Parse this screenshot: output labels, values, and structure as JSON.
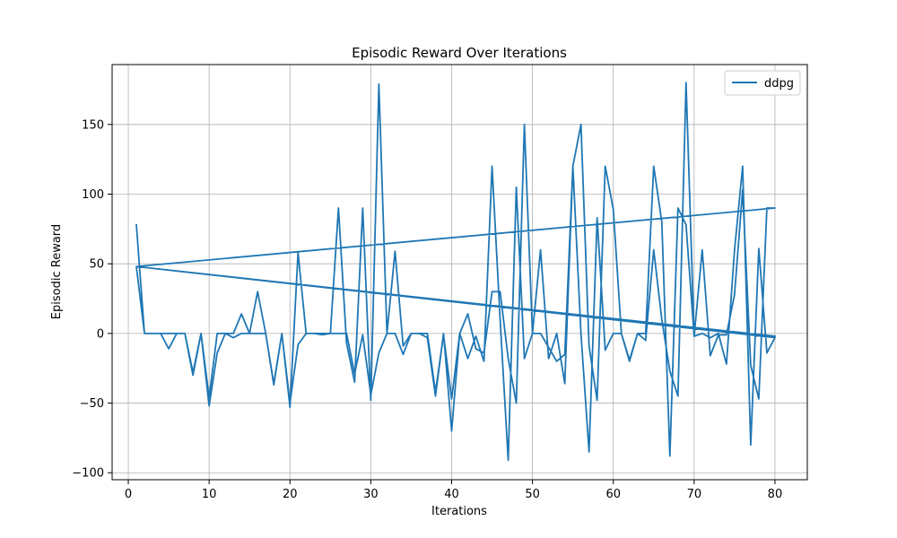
{
  "chart_data": {
    "type": "line",
    "title": "Episodic Reward Over Iterations",
    "xlabel": "Iterations",
    "ylabel": "Episodic Reward",
    "xlim": [
      -2,
      84
    ],
    "ylim": [
      -105,
      193
    ],
    "xticks": [
      0,
      10,
      20,
      30,
      40,
      50,
      60,
      70,
      80
    ],
    "yticks": [
      -100,
      -50,
      0,
      50,
      100,
      150
    ],
    "ytick_labels": [
      "−100",
      "−50",
      "0",
      "50",
      "100",
      "150"
    ],
    "grid": true,
    "legend_position": "top-right",
    "series": [
      {
        "name": "ddpg",
        "color": "#1f77b4",
        "points": [
          [
            1,
            78
          ],
          [
            2,
            0
          ],
          [
            3,
            0
          ],
          [
            4,
            0
          ],
          [
            5,
            -11
          ],
          [
            6,
            0
          ],
          [
            7,
            0
          ],
          [
            8,
            -30
          ],
          [
            9,
            0
          ],
          [
            10,
            -52
          ],
          [
            11,
            -14
          ],
          [
            12,
            0
          ],
          [
            13,
            -3
          ],
          [
            14,
            0
          ],
          [
            15,
            0
          ],
          [
            16,
            30
          ],
          [
            17,
            0
          ],
          [
            18,
            -36
          ],
          [
            19,
            0
          ],
          [
            20,
            -53
          ],
          [
            21,
            58
          ],
          [
            22,
            0
          ],
          [
            23,
            0
          ],
          [
            24,
            0
          ],
          [
            25,
            0
          ],
          [
            26,
            90
          ],
          [
            27,
            -7
          ],
          [
            28,
            -35
          ],
          [
            29,
            90
          ],
          [
            30,
            -48
          ],
          [
            31,
            179
          ],
          [
            32,
            0
          ],
          [
            33,
            59
          ],
          [
            34,
            -9
          ],
          [
            35,
            0
          ],
          [
            36,
            0
          ],
          [
            37,
            -3
          ],
          [
            38,
            -45
          ],
          [
            39,
            0
          ],
          [
            40,
            -70
          ],
          [
            41,
            0
          ],
          [
            42,
            -18
          ],
          [
            43,
            -2
          ],
          [
            44,
            -20
          ],
          [
            45,
            120
          ],
          [
            46,
            10
          ],
          [
            47,
            -91
          ],
          [
            48,
            105
          ],
          [
            49,
            -18
          ],
          [
            50,
            0
          ],
          [
            51,
            60
          ],
          [
            52,
            -18
          ],
          [
            53,
            0
          ],
          [
            54,
            -36
          ],
          [
            55,
            120
          ],
          [
            56,
            0
          ],
          [
            57,
            -85
          ],
          [
            58,
            83
          ],
          [
            59,
            -12
          ],
          [
            60,
            0
          ],
          [
            61,
            0
          ],
          [
            62,
            -20
          ],
          [
            63,
            0
          ],
          [
            64,
            0
          ],
          [
            65,
            120
          ],
          [
            66,
            80
          ],
          [
            67,
            -88
          ],
          [
            68,
            90
          ],
          [
            69,
            78
          ],
          [
            70,
            -2
          ],
          [
            71,
            0
          ],
          [
            72,
            -3
          ],
          [
            73,
            0
          ],
          [
            74,
            -22
          ],
          [
            75,
            60
          ],
          [
            76,
            120
          ],
          [
            77,
            -80
          ],
          [
            78,
            61
          ],
          [
            79,
            -14
          ],
          [
            80,
            -3
          ],
          [
            1,
            48
          ],
          [
            2,
            0
          ],
          [
            3,
            0
          ],
          [
            4,
            0
          ],
          [
            5,
            0
          ],
          [
            6,
            0
          ],
          [
            7,
            0
          ],
          [
            8,
            -28
          ],
          [
            9,
            0
          ],
          [
            10,
            -46
          ],
          [
            11,
            0
          ],
          [
            12,
            0
          ],
          [
            13,
            0
          ],
          [
            14,
            14
          ],
          [
            15,
            0
          ],
          [
            16,
            0
          ],
          [
            17,
            0
          ],
          [
            18,
            -37
          ],
          [
            19,
            0
          ],
          [
            20,
            -50
          ],
          [
            21,
            -8
          ],
          [
            22,
            0
          ],
          [
            23,
            0
          ],
          [
            24,
            -1
          ],
          [
            25,
            0
          ],
          [
            26,
            0
          ],
          [
            27,
            0
          ],
          [
            28,
            -29
          ],
          [
            29,
            -1
          ],
          [
            30,
            -44
          ],
          [
            31,
            -14
          ],
          [
            32,
            0
          ],
          [
            33,
            0
          ],
          [
            34,
            -15
          ],
          [
            35,
            0
          ],
          [
            36,
            0
          ],
          [
            37,
            0
          ],
          [
            38,
            -42
          ],
          [
            39,
            -1
          ],
          [
            40,
            -47
          ],
          [
            41,
            0
          ],
          [
            42,
            14
          ],
          [
            43,
            -11
          ],
          [
            44,
            -14
          ],
          [
            45,
            30
          ],
          [
            46,
            30
          ],
          [
            47,
            -18
          ],
          [
            48,
            -50
          ],
          [
            49,
            150
          ],
          [
            50,
            0
          ],
          [
            51,
            0
          ],
          [
            52,
            -10
          ],
          [
            53,
            -20
          ],
          [
            54,
            -15
          ],
          [
            55,
            120
          ],
          [
            56,
            150
          ],
          [
            57,
            -9
          ],
          [
            58,
            -48
          ],
          [
            59,
            120
          ],
          [
            60,
            89
          ],
          [
            61,
            0
          ],
          [
            62,
            -19
          ],
          [
            63,
            0
          ],
          [
            64,
            -5
          ],
          [
            65,
            60
          ],
          [
            66,
            10
          ],
          [
            67,
            -27
          ],
          [
            68,
            -45
          ],
          [
            69,
            180
          ],
          [
            70,
            -2
          ],
          [
            71,
            60
          ],
          [
            72,
            -16
          ],
          [
            73,
            -1
          ],
          [
            74,
            -1
          ],
          [
            75,
            28
          ],
          [
            76,
            103
          ],
          [
            77,
            -23
          ],
          [
            78,
            -47
          ],
          [
            79,
            90
          ],
          [
            80,
            90
          ],
          [
            1,
            48
          ],
          [
            80,
            -2
          ]
        ]
      }
    ]
  }
}
